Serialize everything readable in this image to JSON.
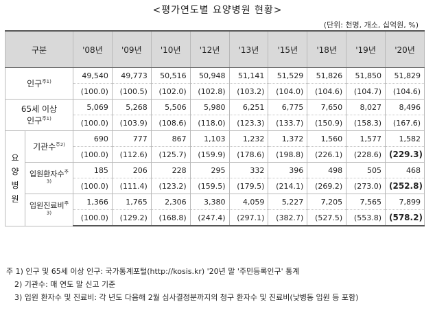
{
  "title": "<평가연도별 요양병원 현황>",
  "unit": "(단위: 천명, 개소, 십억원, %)",
  "header": {
    "category": "구분",
    "years": [
      "'08년",
      "'09년",
      "'10년",
      "'12년",
      "'13년",
      "'15년",
      "'18년",
      "'19년",
      "'20년"
    ]
  },
  "rows": {
    "population": {
      "label": "인구",
      "sup": "주1)",
      "values": [
        "49,540",
        "49,773",
        "50,516",
        "50,948",
        "51,141",
        "51,529",
        "51,826",
        "51,850",
        "51,829"
      ],
      "index": [
        "(100.0)",
        "(100.5)",
        "(102.0)",
        "(102.8)",
        "(103.2)",
        "(104.0)",
        "(104.6)",
        "(104.7)",
        "(104.6)"
      ]
    },
    "elderly": {
      "label1": "65세 이상",
      "label2": "인구",
      "sup": "주1)",
      "values": [
        "5,069",
        "5,268",
        "5,506",
        "5,980",
        "6,251",
        "6,775",
        "7,650",
        "8,027",
        "8,496"
      ],
      "index": [
        "(100.0)",
        "(103.9)",
        "(108.6)",
        "(118.0)",
        "(123.3)",
        "(133.7)",
        "(150.9)",
        "(158.3)",
        "(167.6)"
      ]
    },
    "hospital_group": {
      "c1": "요",
      "c2": "양",
      "c3": "병",
      "c4": "원"
    },
    "institutions": {
      "label": "기관수",
      "sup": "주2)",
      "values": [
        "690",
        "777",
        "867",
        "1,103",
        "1,232",
        "1,372",
        "1,560",
        "1,577",
        "1,582"
      ],
      "index": [
        "(100.0)",
        "(112.6)",
        "(125.7)",
        "(159.9)",
        "(178.6)",
        "(198.8)",
        "(226.1)",
        "(228.6)",
        "(229.3)"
      ]
    },
    "inpatients": {
      "label": "입원환자수",
      "sup": "주3)",
      "values": [
        "185",
        "206",
        "228",
        "295",
        "332",
        "396",
        "498",
        "505",
        "468"
      ],
      "index": [
        "(100.0)",
        "(111.4)",
        "(123.2)",
        "(159.5)",
        "(179.5)",
        "(214.1)",
        "(269.2)",
        "(273.0)",
        "(252.8)"
      ]
    },
    "medical_costs": {
      "label": "입원진료비",
      "sup": "주3)",
      "values": [
        "1,366",
        "1,765",
        "2,306",
        "3,380",
        "4,059",
        "5,227",
        "7,205",
        "7,565",
        "7,899"
      ],
      "index": [
        "(100.0)",
        "(129.2)",
        "(168.8)",
        "(247.4)",
        "(297.1)",
        "(382.7)",
        "(527.5)",
        "(553.8)",
        "(578.2)"
      ]
    }
  },
  "notes": {
    "n1": "주 1) 인구 및 65세 이상 인구: 국가통계포털(http://kosis.kr) '20년 말 '주민등록인구' 통계",
    "n2": "2) 기관수: 매 연도 말 신고 기준",
    "n3": "3) 입원 환자수 및 진료비: 각 년도 다음해 2월 심사결정분까지의 청구 환자수 및 진료비(낮병동 입원 등 포함)"
  }
}
